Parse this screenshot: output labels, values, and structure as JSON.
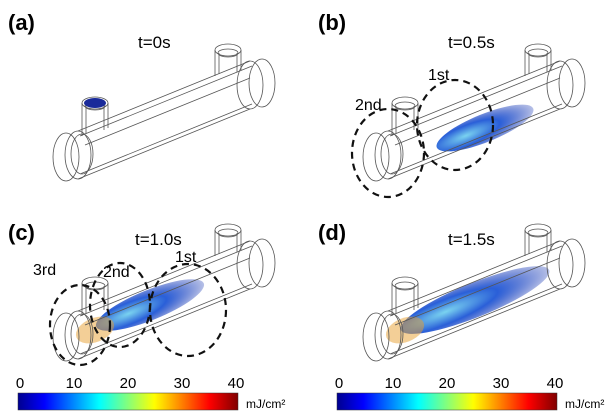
{
  "panels": [
    {
      "label": "(a)",
      "time": "t=0s"
    },
    {
      "label": "(b)",
      "time": "t=0.5s",
      "annotations": [
        "2nd",
        "1st"
      ]
    },
    {
      "label": "(c)",
      "time": "t=1.0s",
      "annotations": [
        "3rd",
        "2nd",
        "1st"
      ]
    },
    {
      "label": "(d)",
      "time": "t=1.5s"
    }
  ],
  "colorbars": [
    {
      "ticks": [
        0,
        10,
        20,
        30,
        40
      ],
      "unit": "mJ/cm²"
    },
    {
      "ticks": [
        0,
        10,
        20,
        30,
        40
      ],
      "unit": "mJ/cm²"
    }
  ]
}
